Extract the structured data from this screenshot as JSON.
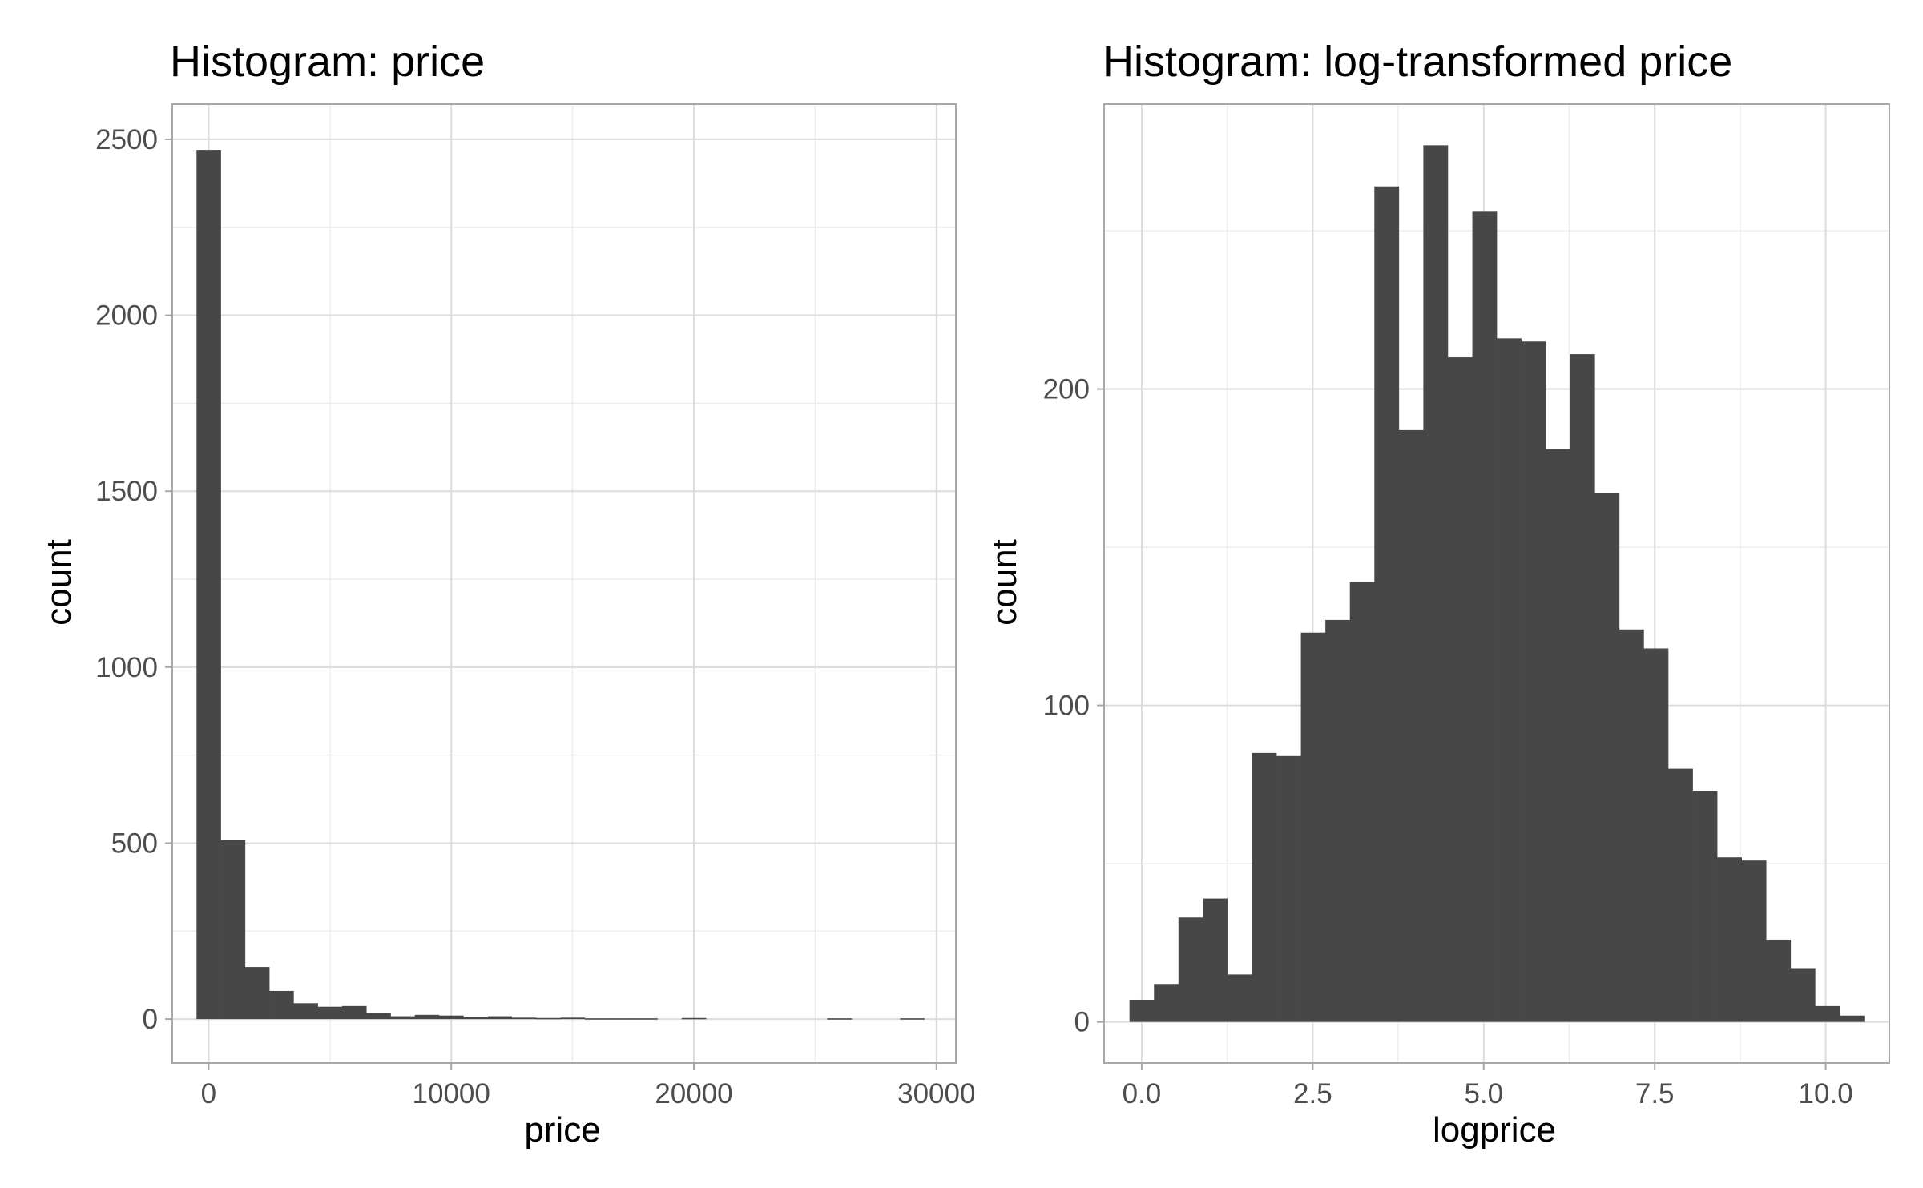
{
  "chart_data": [
    {
      "type": "bar",
      "title": "Histogram: price",
      "xlabel": "price",
      "ylabel": "count",
      "xlim": [
        -1500,
        30800
      ],
      "ylim": [
        -125,
        2600
      ],
      "x_ticks": [
        0,
        10000,
        20000,
        30000
      ],
      "x_tick_labels": [
        "0",
        "10000",
        "20000",
        "30000"
      ],
      "y_ticks": [
        0,
        500,
        1000,
        1500,
        2000,
        2500
      ],
      "y_tick_labels": [
        "0",
        "500",
        "1000",
        "1500",
        "2000",
        "2500"
      ],
      "bin_width": 1000,
      "bin_centers": [
        0,
        1000,
        2000,
        3000,
        4000,
        5000,
        6000,
        7000,
        8000,
        9000,
        10000,
        11000,
        12000,
        13000,
        14000,
        15000,
        16000,
        17000,
        18000,
        19000,
        20000,
        21000,
        22000,
        23000,
        24000,
        25000,
        26000,
        27000,
        28000,
        29000
      ],
      "values": [
        2470,
        508,
        148,
        80,
        45,
        35,
        37,
        18,
        8,
        12,
        10,
        5,
        8,
        4,
        3,
        4,
        2,
        2,
        2,
        0,
        3,
        0,
        0,
        0,
        0,
        0,
        2,
        0,
        0,
        2
      ],
      "grid": true
    },
    {
      "type": "bar",
      "title": "Histogram: log-transformed price",
      "xlabel": "logprice",
      "ylabel": "count",
      "xlim": [
        -0.55,
        10.93
      ],
      "ylim": [
        -13,
        290
      ],
      "x_ticks": [
        0,
        2.5,
        5,
        7.5,
        10
      ],
      "x_tick_labels": [
        "0.0",
        "2.5",
        "5.0",
        "7.5",
        "10.0"
      ],
      "y_ticks": [
        0,
        100,
        200
      ],
      "y_tick_labels": [
        "0",
        "100",
        "200"
      ],
      "bin_width": 0.358,
      "bin_centers": [
        0.0,
        0.358,
        0.716,
        1.074,
        1.432,
        1.79,
        2.148,
        2.506,
        2.864,
        3.222,
        3.58,
        3.938,
        4.296,
        4.654,
        5.012,
        5.37,
        5.728,
        6.086,
        6.444,
        6.802,
        7.16,
        7.518,
        7.876,
        8.234,
        8.592,
        8.95,
        9.308,
        9.666,
        10.024,
        10.382
      ],
      "values": [
        7,
        12,
        33,
        39,
        15,
        85,
        84,
        123,
        127,
        139,
        264,
        187,
        277,
        210,
        256,
        216,
        215,
        181,
        211,
        167,
        124,
        118,
        80,
        73,
        52,
        51,
        26,
        17,
        5,
        2
      ],
      "grid": true
    }
  ]
}
